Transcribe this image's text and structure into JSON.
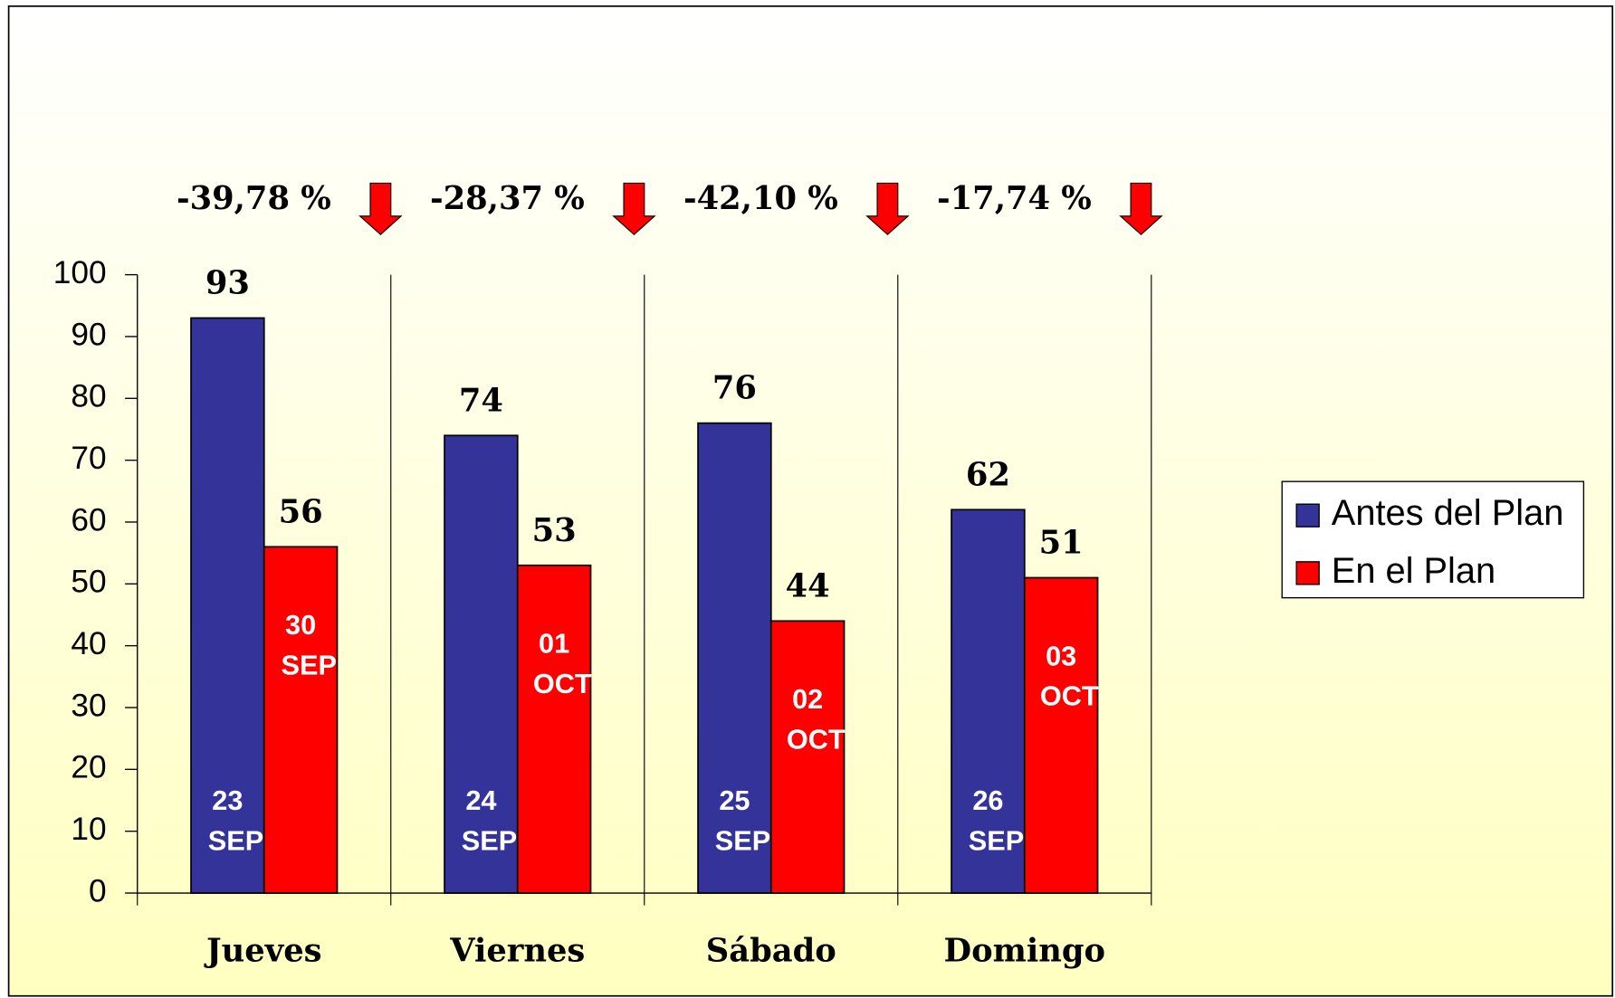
{
  "chart_data": {
    "type": "bar",
    "categories": [
      "Jueves",
      "Viernes",
      "Sábado",
      "Domingo"
    ],
    "series": [
      {
        "name": "Antes del Plan",
        "color": "#333399",
        "values": [
          93,
          74,
          76,
          62
        ],
        "date_labels": [
          [
            "23",
            "SEP"
          ],
          [
            "24",
            "SEP"
          ],
          [
            "25",
            "SEP"
          ],
          [
            "26",
            "SEP"
          ]
        ]
      },
      {
        "name": "En el Plan",
        "color": "#ff0000",
        "values": [
          56,
          53,
          44,
          51
        ],
        "date_labels": [
          [
            "30",
            "SEP"
          ],
          [
            "01",
            "OCT"
          ],
          [
            "02",
            "OCT"
          ],
          [
            "03",
            "OCT"
          ]
        ]
      }
    ],
    "annotations": [
      "-39,78 %",
      "-28,37 %",
      "-42,10 %",
      "-17,74 %"
    ],
    "ylim": [
      0,
      100
    ],
    "yticks": [
      0,
      10,
      20,
      30,
      40,
      50,
      60,
      70,
      80,
      90,
      100
    ],
    "legend": "right"
  }
}
